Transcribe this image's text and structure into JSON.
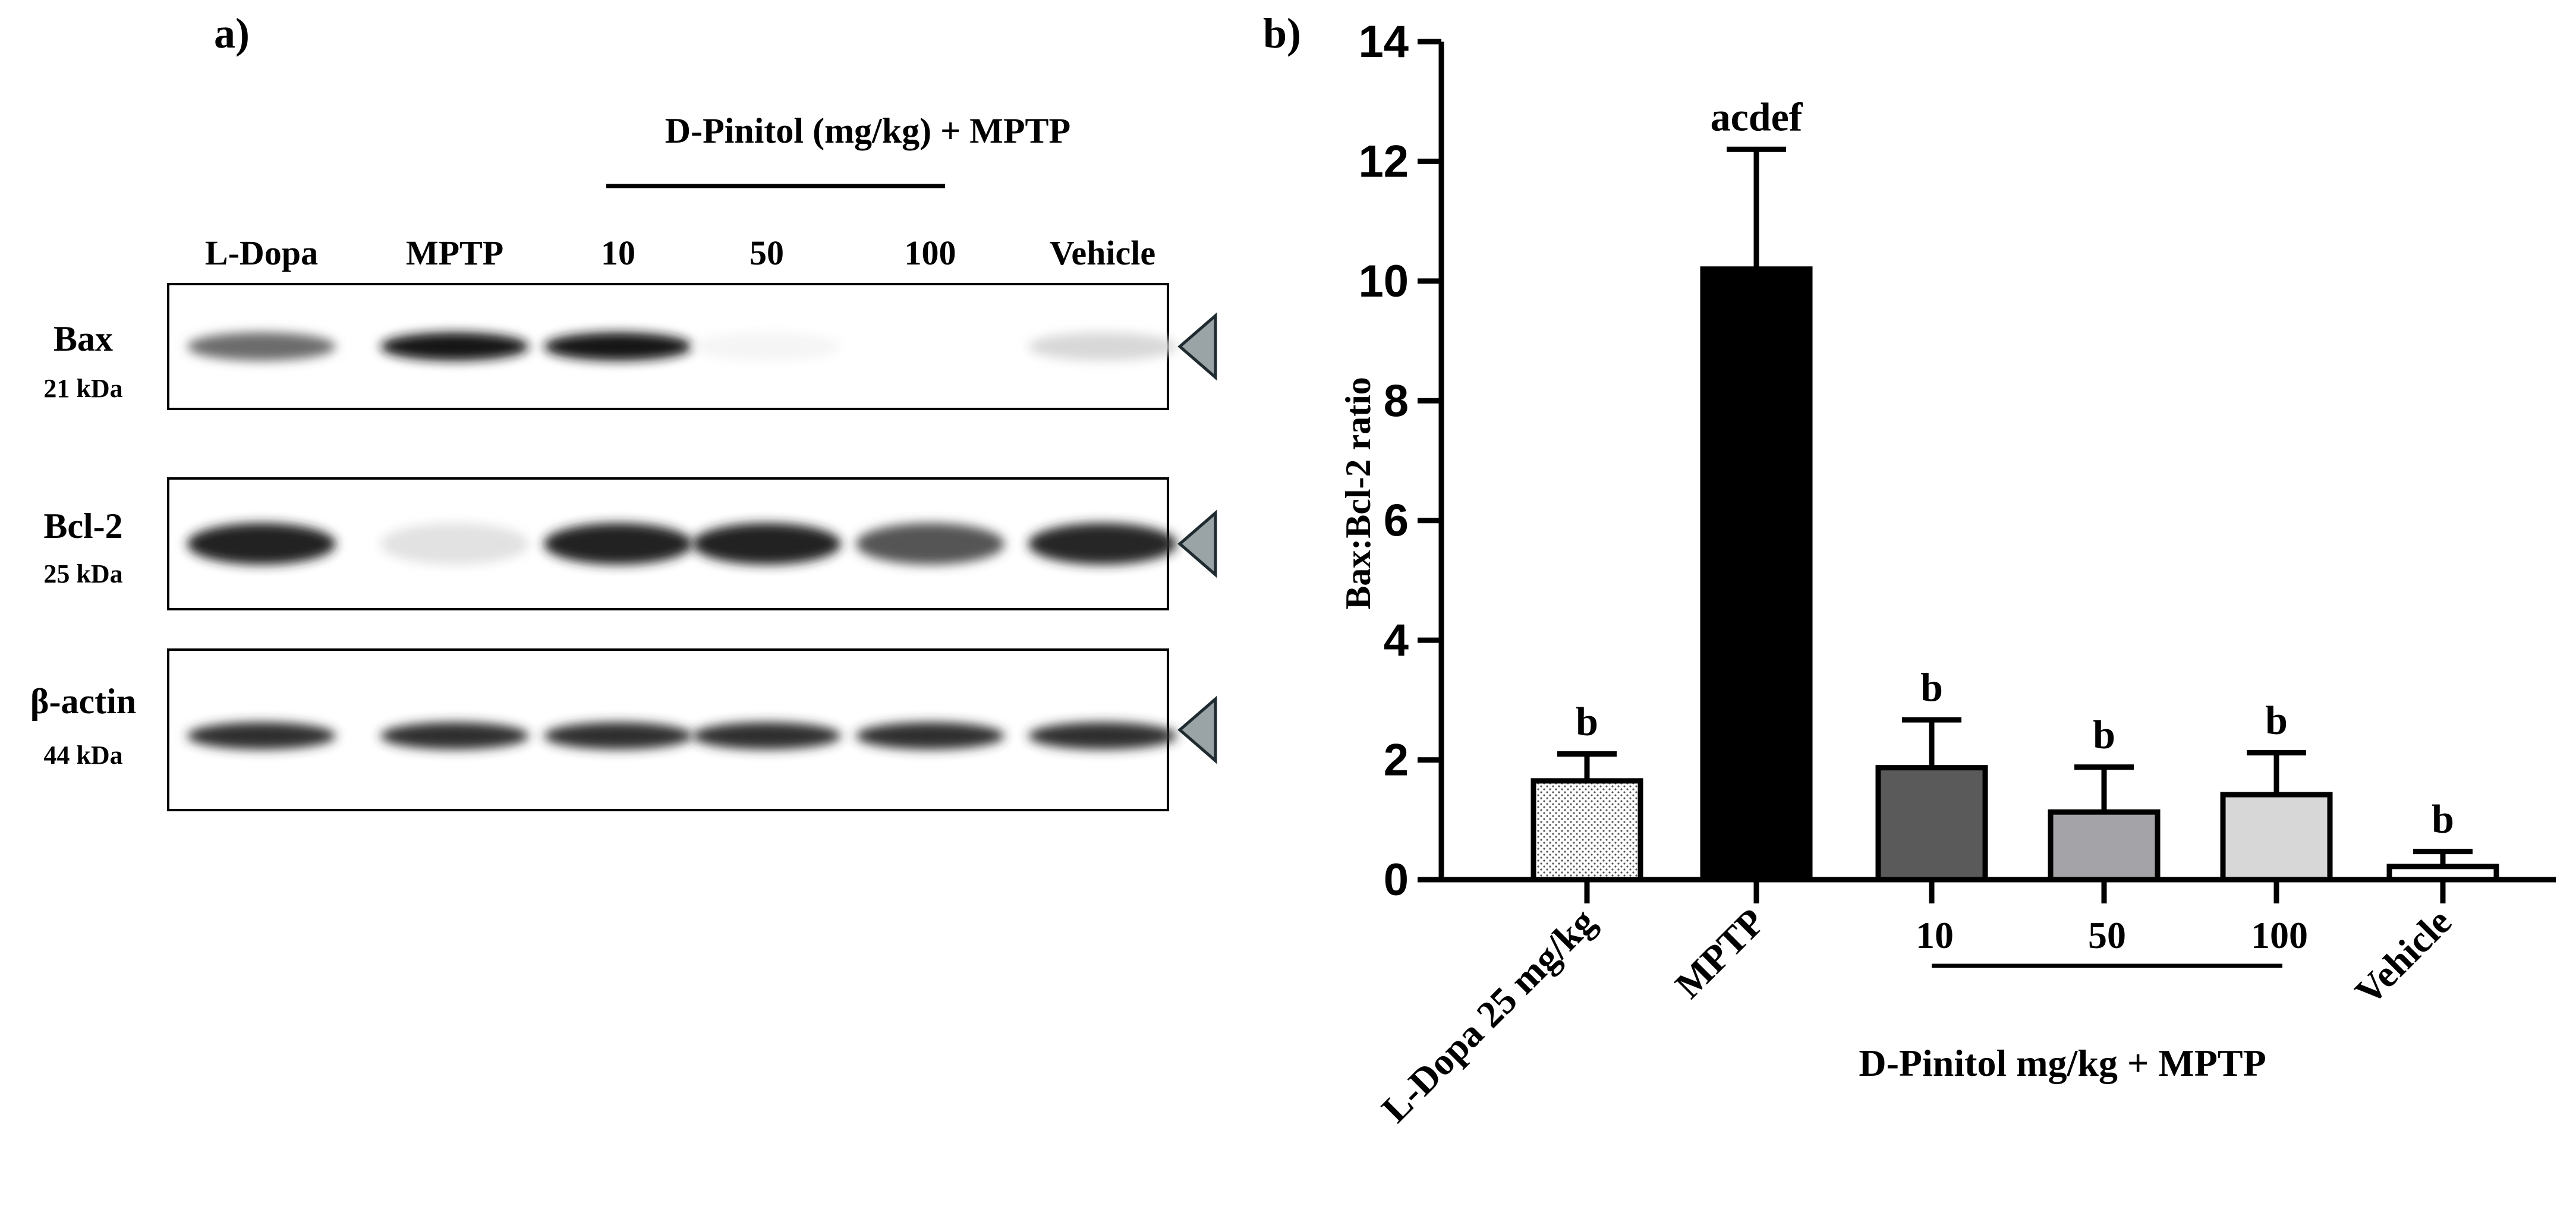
{
  "panel_a": {
    "label": "a)",
    "group_title": "D-Pinitol (mg/kg) + MPTP",
    "lanes": [
      "L-Dopa",
      "MPTP",
      "10",
      "50",
      "100",
      "Vehicle"
    ],
    "blots": [
      {
        "name": "Bax",
        "kda": "21 kDa",
        "intensity": [
          0.6,
          0.95,
          0.95,
          0.04,
          0.0,
          0.16
        ]
      },
      {
        "name": "Bcl-2",
        "kda": "25 kDa",
        "intensity": [
          0.9,
          0.12,
          0.9,
          0.9,
          0.7,
          0.88
        ]
      },
      {
        "name": "β-actin",
        "kda": "44 kDa",
        "intensity": [
          0.85,
          0.85,
          0.85,
          0.85,
          0.85,
          0.85
        ]
      }
    ],
    "marker_color": "#9aa3a6"
  },
  "chart_data": {
    "type": "bar",
    "panel_label": "b)",
    "categories": [
      "L-Dopa 25 mg/kg",
      "MPTP",
      "10",
      "50",
      "100",
      "Vehicle"
    ],
    "values": [
      1.65,
      10.2,
      1.87,
      1.13,
      1.42,
      0.22
    ],
    "errors": [
      0.45,
      2.0,
      0.8,
      0.75,
      0.7,
      0.25
    ],
    "significance": [
      "b",
      "acdef",
      "b",
      "b",
      "b",
      "b"
    ],
    "fills": [
      "dotted",
      "#000000",
      "#5a5a5a",
      "#a4a4a8",
      "#d7d7d7",
      "#ffffff"
    ],
    "ylabel": "Bax:Bcl-2 ratio",
    "xlabel": "D-Pinitol mg/kg + MPTP",
    "ylim": [
      0,
      14
    ],
    "yticks": [
      0,
      2,
      4,
      6,
      8,
      10,
      12,
      14
    ],
    "grid": false,
    "legend": "none"
  }
}
